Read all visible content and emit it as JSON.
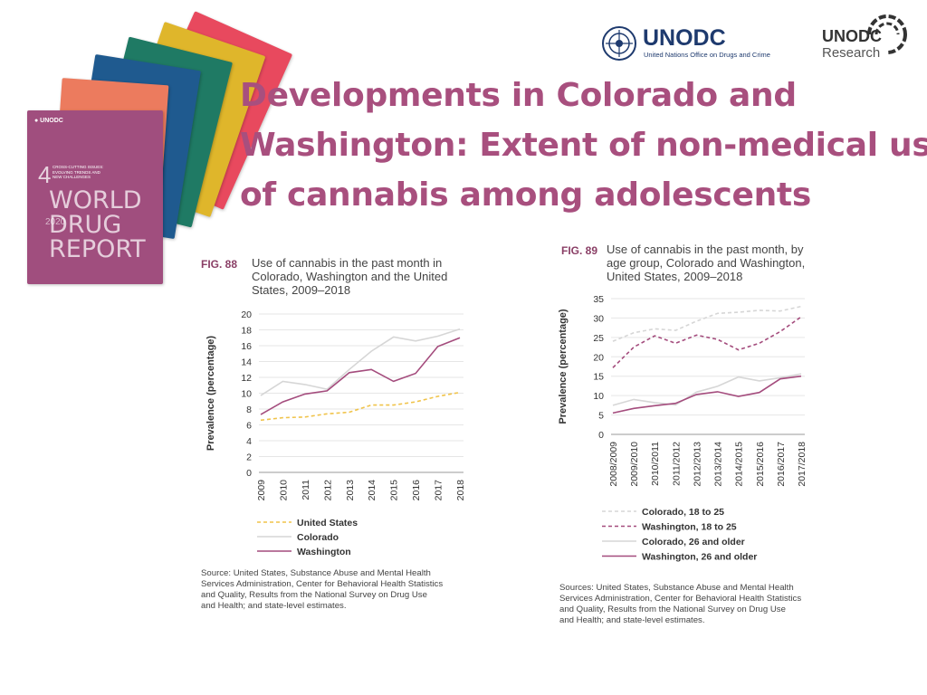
{
  "slide": {
    "title_lines": [
      "Developments in Colorado and",
      "Washington: Extent of non-medical use",
      "of cannabis among adolescents"
    ]
  },
  "logos": {
    "unodc": {
      "name": "UNODC",
      "subtitle": "United Nations Office on Drugs and Crime"
    },
    "research": {
      "name": "UNODC",
      "subtitle": "Research"
    }
  },
  "report_cover": {
    "chapter": "4",
    "chapter_lines": [
      "CROSS-CUTTING ISSUES:",
      "EVOLVING TRENDS AND",
      "NEW CHALLENGES"
    ],
    "title_lines": [
      "WORLD",
      "DRUG",
      "REPORT"
    ],
    "year": "2020",
    "colors": [
      "#e8495e",
      "#dfb62b",
      "#1f7a64",
      "#1f5a8f",
      "#ec7b5e",
      "#a04e7e"
    ]
  },
  "chart_data": [
    {
      "type": "line",
      "figure_label": "FIG. 88",
      "caption_lines": [
        "Use of cannabis in the past month in",
        "Colorado, Washington and the United",
        "States, 2009–2018"
      ],
      "ylabel": "Prevalence (percentage)",
      "ylim": [
        0,
        20
      ],
      "yticks": [
        0,
        2,
        4,
        6,
        8,
        10,
        12,
        14,
        16,
        18,
        20
      ],
      "categories": [
        "2009",
        "2010",
        "2011",
        "2012",
        "2013",
        "2014",
        "2015",
        "2016",
        "2017",
        "2018"
      ],
      "grid": true,
      "legend_position": "bottom-left",
      "series": [
        {
          "name": "United States",
          "color": "#f0c34a",
          "dash": "dashed",
          "values": [
            6.6,
            6.9,
            7.0,
            7.4,
            7.6,
            8.5,
            8.5,
            8.9,
            9.6,
            10.1
          ]
        },
        {
          "name": "Colorado",
          "color": "#d6d6d6",
          "dash": "solid",
          "values": [
            9.7,
            11.5,
            11.1,
            10.5,
            13.0,
            15.3,
            17.1,
            16.6,
            17.2,
            18.1
          ]
        },
        {
          "name": "Washington",
          "color": "#a44c7d",
          "dash": "solid",
          "values": [
            7.3,
            8.9,
            9.9,
            10.3,
            12.6,
            13.0,
            11.5,
            12.5,
            15.9,
            17.0
          ]
        }
      ],
      "source_lines": [
        "Source: United States, Substance Abuse and Mental Health",
        "Services Administration, Center for Behavioral Health Statistics",
        "and Quality, Results from the National Survey on Drug Use",
        "and Health; and state-level estimates."
      ]
    },
    {
      "type": "line",
      "figure_label": "FIG. 89",
      "caption_lines": [
        "Use of cannabis in the past month, by",
        "age group, Colorado and Washington,",
        "United States, 2009–2018"
      ],
      "ylabel": "Prevalence (percentage)",
      "ylim": [
        0,
        35
      ],
      "yticks": [
        0,
        5,
        10,
        15,
        20,
        25,
        30,
        35
      ],
      "categories": [
        "2008/2009",
        "2009/2010",
        "2010/2011",
        "2011/2012",
        "2012/2013",
        "2013/2014",
        "2014/2015",
        "2015/2016",
        "2016/2017",
        "2017/2018"
      ],
      "grid": true,
      "legend_position": "bottom-left",
      "series": [
        {
          "name": "Colorado, 18 to 25",
          "color": "#d6d6d6",
          "dash": "dashed",
          "values": [
            24.0,
            26.2,
            27.2,
            26.8,
            29.2,
            31.2,
            31.5,
            32.0,
            31.8,
            33.0
          ]
        },
        {
          "name": "Washington, 18 to 25",
          "color": "#a44c7d",
          "dash": "dashed",
          "values": [
            17.2,
            22.5,
            25.4,
            23.5,
            25.6,
            24.5,
            21.8,
            23.5,
            26.5,
            30.3
          ]
        },
        {
          "name": "Colorado, 26 and older",
          "color": "#d6d6d6",
          "dash": "solid",
          "values": [
            7.5,
            9.0,
            8.2,
            7.6,
            10.9,
            12.4,
            14.8,
            13.8,
            14.6,
            15.6
          ]
        },
        {
          "name": "Washington, 26 and older",
          "color": "#a44c7d",
          "dash": "solid",
          "values": [
            5.5,
            6.7,
            7.4,
            8.0,
            10.3,
            11.0,
            9.8,
            10.8,
            14.3,
            15.0
          ]
        }
      ],
      "source_lines": [
        "Sources: United States, Substance Abuse and Mental Health",
        "Services Administration, Center for Behavioral Health Statistics",
        "and Quality, Results from the National Survey on Drug Use",
        "and Health; and state-level estimates."
      ]
    }
  ]
}
